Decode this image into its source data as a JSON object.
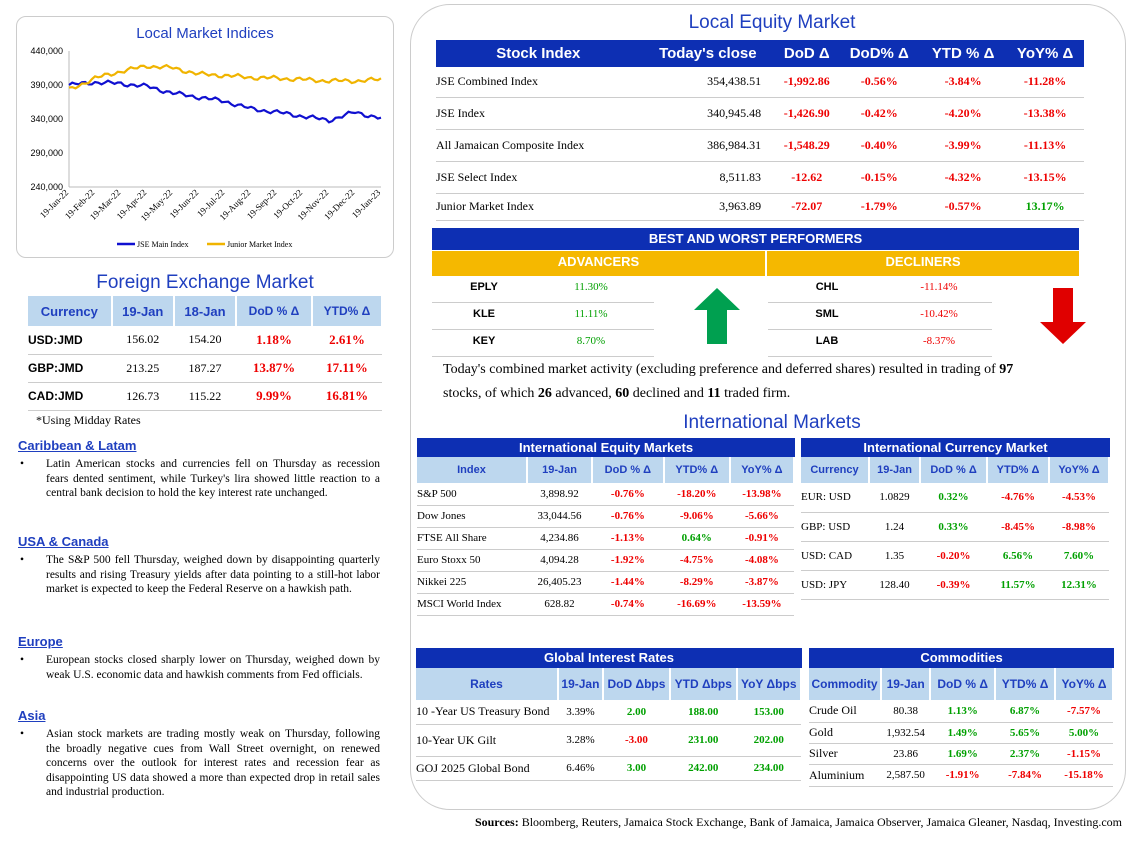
{
  "chart_panel": {
    "title": "Local Market Indices"
  },
  "chart_data": {
    "type": "line",
    "title": "Local Market Indices",
    "categories": [
      "19-Jan-22",
      "19-Feb-22",
      "19-Mar-22",
      "19-Apr-22",
      "19-May-22",
      "19-Jun-22",
      "19-Jul-22",
      "19-Aug-22",
      "19-Sep-22",
      "19-Oct-22",
      "19-Nov-22",
      "19-Dec-22",
      "19-Jan-23"
    ],
    "ylim": [
      240000,
      440000
    ],
    "yticks": [
      "440,000",
      "390,000",
      "340,000",
      "290,000",
      "240,000"
    ],
    "series": [
      {
        "name": "JSE Main Index",
        "color": "#1010d0",
        "values": [
          390000,
          394000,
          392000,
          388000,
          378000,
          372000,
          366000,
          355000,
          350000,
          344000,
          338000,
          350000,
          341000
        ]
      },
      {
        "name": "Junior Market Index",
        "color": "#f0b400",
        "values": [
          383000,
          400000,
          410000,
          418000,
          415000,
          406000,
          404000,
          401000,
          400000,
          398000,
          396000,
          396000,
          398000
        ]
      }
    ]
  },
  "fx": {
    "title": "Foreign Exchange Market",
    "headers": [
      "Currency",
      "19-Jan",
      "18-Jan",
      "DoD % Δ",
      "YTD% Δ"
    ],
    "rows": [
      [
        "USD:JMD",
        "156.02",
        "154.20",
        "1.18%",
        "2.61%"
      ],
      [
        "GBP:JMD",
        "213.25",
        "187.27",
        "13.87%",
        "17.11%"
      ],
      [
        "CAD:JMD",
        "126.73",
        "115.22",
        "9.99%",
        "16.81%"
      ]
    ],
    "note": "*Using Midday Rates"
  },
  "news": [
    {
      "heading": "Caribbean & Latam",
      "text": "Latin American stocks and currencies fell on Thursday as recession fears dented sentiment, while Turkey's lira showed little reaction to a central bank decision to hold the key interest rate unchanged."
    },
    {
      "heading": "USA & Canada",
      "text": "The S&P 500 fell Thursday, weighed down by disappointing quarterly results and rising Treasury yields after data pointing to a still-hot labor market is expected to keep the Federal Reserve on a hawkish path."
    },
    {
      "heading": "Europe",
      "text": "European stocks closed sharply lower on Thursday, weighed down by weak U.S. economic data and hawkish comments from Fed officials."
    },
    {
      "heading": "Asia",
      "text": "Asian stock markets are trading mostly weak on Thursday, following the broadly negative cues from Wall Street overnight, on renewed concerns over the outlook for interest rates and recession fear as disappointing US data showed a more than expected drop in retail sales and industrial production."
    }
  ],
  "equity": {
    "title": "Local Equity Market",
    "headers": [
      "Stock Index",
      "Today's close",
      "DoD  Δ",
      "DoD% Δ",
      "YTD % Δ",
      "YoY% Δ"
    ],
    "rows": [
      [
        "JSE Combined Index",
        "354,438.51",
        "-1,992.86",
        "-0.56%",
        "-3.84%",
        "-11.28%"
      ],
      [
        "JSE Index",
        "340,945.48",
        "-1,426.90",
        "-0.42%",
        "-4.20%",
        "-13.38%"
      ],
      [
        "All Jamaican Composite Index",
        "386,984.31",
        "-1,548.29",
        "-0.40%",
        "-3.99%",
        "-11.13%"
      ],
      [
        "JSE Select Index",
        "8,511.83",
        "-12.62",
        "-0.15%",
        "-4.32%",
        "-13.15%"
      ],
      [
        "Junior Market Index",
        "3,963.89",
        "-72.07",
        "-1.79%",
        "-0.57%",
        "13.17%"
      ]
    ]
  },
  "performers": {
    "title": "BEST AND WORST PERFORMERS",
    "advancers_label": "ADVANCERS",
    "decliners_label": "DECLINERS",
    "advancers": [
      [
        "EPLY",
        "11.30%"
      ],
      [
        "KLE",
        "11.11%"
      ],
      [
        "KEY",
        "8.70%"
      ]
    ],
    "decliners": [
      [
        "CHL",
        "-11.14%"
      ],
      [
        "SML",
        "-10.42%"
      ],
      [
        "LAB",
        "-8.37%"
      ]
    ]
  },
  "summary": {
    "p1": "Today's combined market activity (excluding preference and deferred shares) resulted in trading of ",
    "n1": "97",
    "p2": "stocks, of which ",
    "n2": "26",
    "p3": " advanced, ",
    "n3": "60",
    "p4": " declined and ",
    "n4": "11",
    "p5": " traded firm."
  },
  "intl": {
    "title": "International Markets",
    "equity_title": "International Equity Markets",
    "equity_headers": [
      "Index",
      "19-Jan",
      "DoD % Δ",
      "YTD% Δ",
      "YoY% Δ"
    ],
    "equity_rows": [
      [
        "S&P 500",
        "3,898.92",
        "-0.76%",
        "-18.20%",
        "-13.98%"
      ],
      [
        "Dow Jones",
        "33,044.56",
        "-0.76%",
        "-9.06%",
        "-5.66%"
      ],
      [
        "FTSE All Share",
        "4,234.86",
        "-1.13%",
        "0.64%",
        "-0.91%"
      ],
      [
        "Euro Stoxx 50",
        "4,094.28",
        "-1.92%",
        "-4.75%",
        "-4.08%"
      ],
      [
        "Nikkei 225",
        "26,405.23",
        "-1.44%",
        "-8.29%",
        "-3.87%"
      ],
      [
        "MSCI World Index",
        "628.82",
        "-0.74%",
        "-16.69%",
        "-13.59%"
      ]
    ],
    "currency_title": "International Currency Market",
    "currency_headers": [
      "Currency",
      "19-Jan",
      "DoD % Δ",
      "YTD% Δ",
      "YoY% Δ"
    ],
    "currency_rows": [
      [
        "EUR: USD",
        "1.0829",
        "0.32%",
        "-4.76%",
        "-4.53%"
      ],
      [
        "GBP: USD",
        "1.24",
        "0.33%",
        "-8.45%",
        "-8.98%"
      ],
      [
        "USD: CAD",
        "1.35",
        "-0.20%",
        "6.56%",
        "7.60%"
      ],
      [
        "USD: JPY",
        "128.40",
        "-0.39%",
        "11.57%",
        "12.31%"
      ]
    ]
  },
  "rates": {
    "title": "Global Interest Rates",
    "headers": [
      "Rates",
      "19-Jan",
      "DoD Δbps",
      "YTD Δbps",
      "YoY Δbps"
    ],
    "rows": [
      [
        "10 -Year US Treasury Bond",
        "3.39%",
        "2.00",
        "188.00",
        "153.00"
      ],
      [
        "10-Year UK Gilt",
        "3.28%",
        "-3.00",
        "231.00",
        "202.00"
      ],
      [
        "GOJ 2025 Global Bond",
        "6.46%",
        "3.00",
        "242.00",
        "234.00"
      ]
    ]
  },
  "commodities": {
    "title": "Commodities",
    "headers": [
      "Commodity",
      "19-Jan",
      "DoD % Δ",
      "YTD% Δ",
      "YoY% Δ"
    ],
    "rows": [
      [
        "Crude Oil",
        "80.38",
        "1.13%",
        "6.87%",
        "-7.57%"
      ],
      [
        "Gold",
        "1,932.54",
        "1.49%",
        "5.65%",
        "5.00%"
      ],
      [
        "Silver",
        "23.86",
        "1.69%",
        "2.37%",
        "-1.15%"
      ],
      [
        "Aluminium",
        "2,587.50",
        "-1.91%",
        "-7.84%",
        "-15.18%"
      ]
    ]
  },
  "sources": {
    "label": "Sources:",
    "text": " Bloomberg, Reuters, Jamaica Stock Exchange, Bank of Jamaica, Jamaica Observer, Jamaica Gleaner, Nasdaq, Investing.com"
  },
  "colors": {
    "neg": "#e00000",
    "pos": "#00a000",
    "header_blue": "#0d2fb3",
    "header_light": "#bdd7ee",
    "gold": "#f5b800"
  }
}
